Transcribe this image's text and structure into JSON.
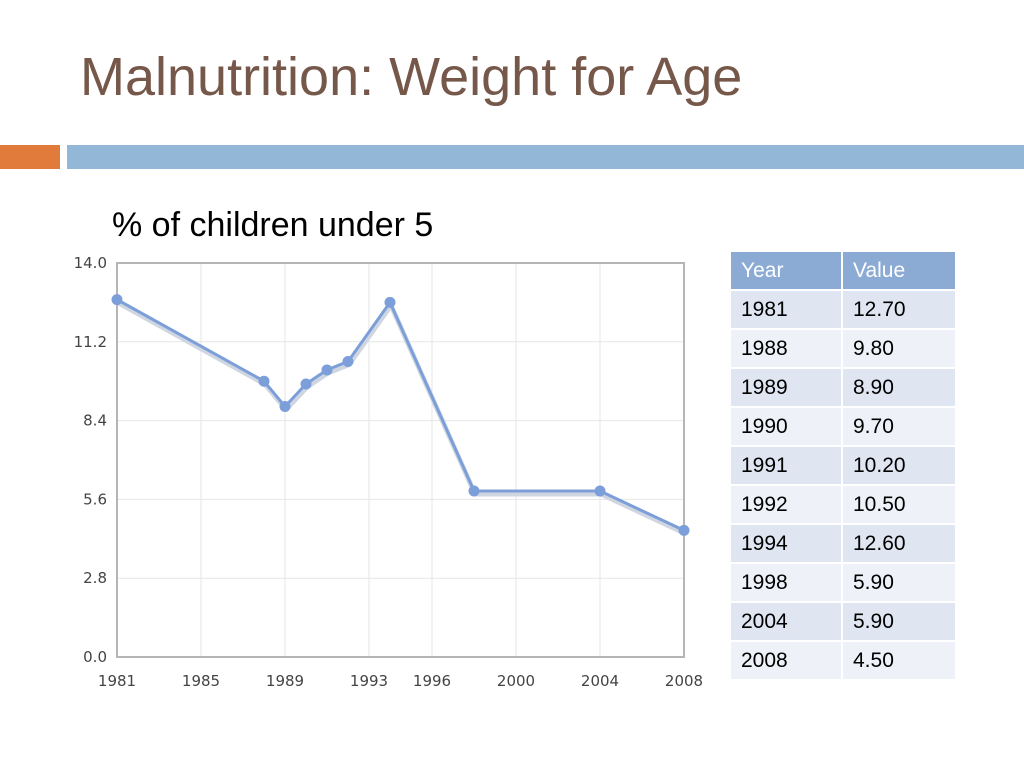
{
  "slide": {
    "title": "Malnutrition: Weight for Age",
    "subtitle": "% of children under 5"
  },
  "colors": {
    "title": "#76584a",
    "accent_orange": "#e07b3c",
    "accent_blue": "#93b7d6",
    "series_line": "#7c9fd9",
    "table_header": "#8cabd4"
  },
  "chart_data": {
    "type": "line",
    "title": "",
    "xlabel": "",
    "ylabel": "",
    "xlim": [
      1981,
      2008
    ],
    "ylim": [
      0,
      14
    ],
    "y_ticks": [
      "0.0",
      "2.8",
      "5.6",
      "8.4",
      "11.2",
      "14.0"
    ],
    "x_ticks": [
      "1981",
      "1985",
      "1989",
      "1993",
      "1996",
      "2000",
      "2004",
      "2008"
    ],
    "grid": true,
    "legend": "none",
    "series": [
      {
        "x": [
          1981,
          1988,
          1989,
          1990,
          1991,
          1992,
          1994,
          1998,
          2004,
          2008
        ],
        "y": [
          12.7,
          9.8,
          8.9,
          9.7,
          10.2,
          10.5,
          12.6,
          5.9,
          5.9,
          4.5
        ]
      }
    ]
  },
  "table": {
    "headers": [
      "Year",
      "Value"
    ],
    "rows": [
      [
        "1981",
        "12.70"
      ],
      [
        "1988",
        "9.80"
      ],
      [
        "1989",
        "8.90"
      ],
      [
        "1990",
        "9.70"
      ],
      [
        "1991",
        "10.20"
      ],
      [
        "1992",
        "10.50"
      ],
      [
        "1994",
        "12.60"
      ],
      [
        "1998",
        "5.90"
      ],
      [
        "2004",
        "5.90"
      ],
      [
        "2008",
        "4.50"
      ]
    ]
  }
}
